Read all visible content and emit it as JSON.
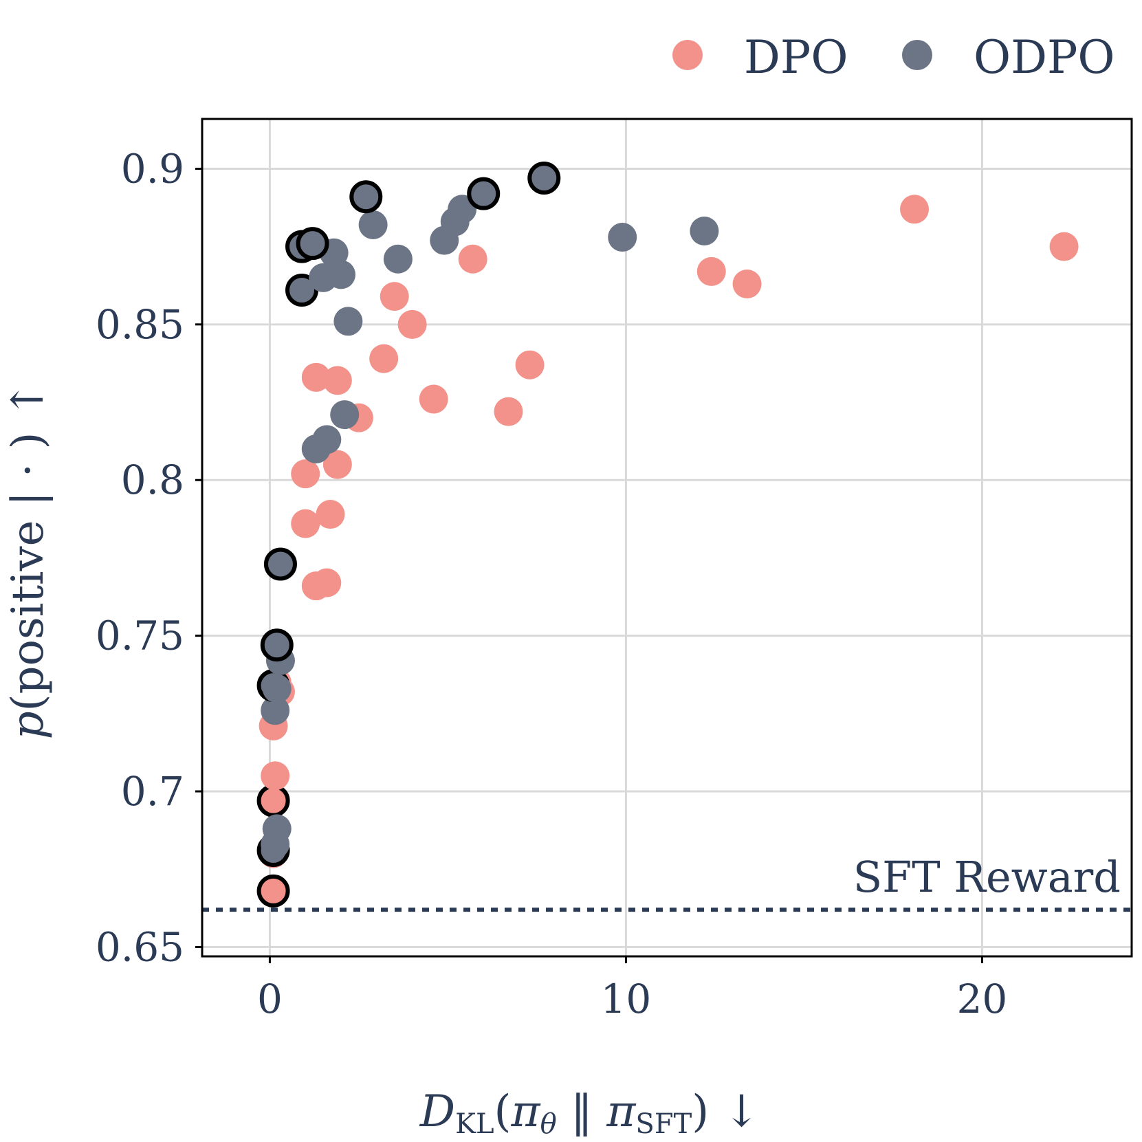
{
  "chart_data": {
    "type": "scatter",
    "title": "",
    "xlabel": "D_KL(π_θ || π_SFT) ↓",
    "ylabel": "p(positive | ·) ↑",
    "xlim": [
      -1.9,
      24.2
    ],
    "ylim": [
      0.647,
      0.916
    ],
    "x_ticks": [
      {
        "value": 0,
        "label": "0"
      },
      {
        "value": 10,
        "label": "10"
      },
      {
        "value": 20,
        "label": "20"
      }
    ],
    "y_ticks": [
      {
        "value": 0.65,
        "label": "0.65"
      },
      {
        "value": 0.7,
        "label": "0.7"
      },
      {
        "value": 0.75,
        "label": "0.75"
      },
      {
        "value": 0.8,
        "label": "0.8"
      },
      {
        "value": 0.85,
        "label": "0.85"
      },
      {
        "value": 0.9,
        "label": "0.9"
      }
    ],
    "grid": true,
    "legend_position": "top-right",
    "reference_line": {
      "label": "SFT Reward",
      "y": 0.662,
      "style": "dotted"
    },
    "colors": {
      "DPO": "#f2928a",
      "ODPO": "#6c7585",
      "text": "#2b3a55",
      "grid": "#d9d9d9",
      "highlight_outline": "#000000"
    },
    "series": [
      {
        "name": "DPO",
        "points": [
          {
            "x": 0.1,
            "y": 0.668,
            "highlighted": true
          },
          {
            "x": 0.1,
            "y": 0.68,
            "highlighted": false
          },
          {
            "x": 0.1,
            "y": 0.697,
            "highlighted": true
          },
          {
            "x": 0.15,
            "y": 0.705,
            "highlighted": false
          },
          {
            "x": 0.1,
            "y": 0.721,
            "highlighted": false
          },
          {
            "x": 0.3,
            "y": 0.732,
            "highlighted": false
          },
          {
            "x": 0.2,
            "y": 0.735,
            "highlighted": false
          },
          {
            "x": 1.3,
            "y": 0.766,
            "highlighted": false
          },
          {
            "x": 1.6,
            "y": 0.767,
            "highlighted": false
          },
          {
            "x": 1.0,
            "y": 0.786,
            "highlighted": false
          },
          {
            "x": 1.7,
            "y": 0.789,
            "highlighted": false
          },
          {
            "x": 1.0,
            "y": 0.802,
            "highlighted": false
          },
          {
            "x": 1.9,
            "y": 0.805,
            "highlighted": false
          },
          {
            "x": 2.5,
            "y": 0.82,
            "highlighted": false
          },
          {
            "x": 1.3,
            "y": 0.833,
            "highlighted": false
          },
          {
            "x": 1.9,
            "y": 0.832,
            "highlighted": false
          },
          {
            "x": 3.2,
            "y": 0.839,
            "highlighted": false
          },
          {
            "x": 4.6,
            "y": 0.826,
            "highlighted": false
          },
          {
            "x": 6.7,
            "y": 0.822,
            "highlighted": false
          },
          {
            "x": 7.3,
            "y": 0.837,
            "highlighted": false
          },
          {
            "x": 3.5,
            "y": 0.859,
            "highlighted": false
          },
          {
            "x": 4.0,
            "y": 0.85,
            "highlighted": false
          },
          {
            "x": 5.7,
            "y": 0.871,
            "highlighted": false
          },
          {
            "x": 12.4,
            "y": 0.867,
            "highlighted": false
          },
          {
            "x": 13.4,
            "y": 0.863,
            "highlighted": false
          },
          {
            "x": 18.1,
            "y": 0.887,
            "highlighted": false
          },
          {
            "x": 22.3,
            "y": 0.875,
            "highlighted": false
          }
        ]
      },
      {
        "name": "ODPO",
        "points": [
          {
            "x": 0.1,
            "y": 0.681,
            "highlighted": true
          },
          {
            "x": 0.15,
            "y": 0.683,
            "highlighted": false
          },
          {
            "x": 0.2,
            "y": 0.688,
            "highlighted": false
          },
          {
            "x": 0.15,
            "y": 0.726,
            "highlighted": false
          },
          {
            "x": 0.1,
            "y": 0.734,
            "highlighted": true
          },
          {
            "x": 0.2,
            "y": 0.733,
            "highlighted": false
          },
          {
            "x": 0.3,
            "y": 0.742,
            "highlighted": false
          },
          {
            "x": 0.2,
            "y": 0.747,
            "highlighted": true
          },
          {
            "x": 0.3,
            "y": 0.773,
            "highlighted": true
          },
          {
            "x": 1.3,
            "y": 0.81,
            "highlighted": false
          },
          {
            "x": 1.6,
            "y": 0.813,
            "highlighted": false
          },
          {
            "x": 2.1,
            "y": 0.821,
            "highlighted": false
          },
          {
            "x": 2.2,
            "y": 0.851,
            "highlighted": false
          },
          {
            "x": 0.9,
            "y": 0.861,
            "highlighted": true
          },
          {
            "x": 1.5,
            "y": 0.865,
            "highlighted": false
          },
          {
            "x": 2.0,
            "y": 0.866,
            "highlighted": false
          },
          {
            "x": 1.8,
            "y": 0.873,
            "highlighted": false
          },
          {
            "x": 0.9,
            "y": 0.875,
            "highlighted": true
          },
          {
            "x": 1.2,
            "y": 0.876,
            "highlighted": true
          },
          {
            "x": 2.9,
            "y": 0.882,
            "highlighted": false
          },
          {
            "x": 2.7,
            "y": 0.891,
            "highlighted": true
          },
          {
            "x": 3.6,
            "y": 0.871,
            "highlighted": false
          },
          {
            "x": 4.9,
            "y": 0.877,
            "highlighted": false
          },
          {
            "x": 5.2,
            "y": 0.883,
            "highlighted": false
          },
          {
            "x": 5.4,
            "y": 0.887,
            "highlighted": false
          },
          {
            "x": 6.0,
            "y": 0.892,
            "highlighted": true
          },
          {
            "x": 7.7,
            "y": 0.897,
            "highlighted": true
          },
          {
            "x": 9.9,
            "y": 0.878,
            "highlighted": false
          },
          {
            "x": 12.2,
            "y": 0.88,
            "highlighted": false
          }
        ]
      }
    ]
  }
}
